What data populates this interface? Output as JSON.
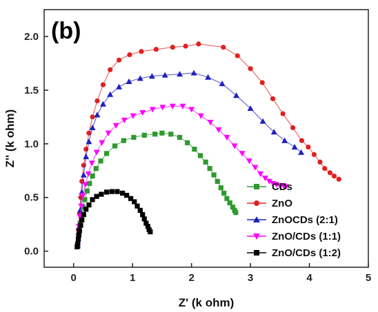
{
  "chart_data": {
    "type": "scatter",
    "panel_label": "(b)",
    "xlabel": "Z' (k ohm)",
    "ylabel": "Z'' (k ohm)",
    "xlim": [
      -0.5,
      5
    ],
    "ylim": [
      -0.15,
      2.25
    ],
    "xticks": [
      0,
      1,
      2,
      3,
      4,
      5
    ],
    "yticks": [
      0.0,
      0.5,
      1.0,
      1.5,
      2.0
    ],
    "ytick_labels": [
      "0.0",
      "0.5",
      "1.0",
      "1.5",
      "2.0"
    ],
    "grid": false,
    "legend_position": "bottom-right",
    "series": [
      {
        "name": "CDs",
        "color": "#2e9a2e",
        "marker": "square",
        "x": [
          0.07,
          0.08,
          0.09,
          0.11,
          0.13,
          0.16,
          0.19,
          0.23,
          0.27,
          0.32,
          0.38,
          0.46,
          0.56,
          0.7,
          0.85,
          1.02,
          1.2,
          1.38,
          1.5,
          1.65,
          1.8,
          1.93,
          2.05,
          2.15,
          2.24,
          2.31,
          2.38,
          2.44,
          2.5,
          2.55,
          2.6,
          2.65,
          2.7,
          2.73,
          2.75
        ],
        "y": [
          0.05,
          0.12,
          0.19,
          0.26,
          0.33,
          0.41,
          0.48,
          0.56,
          0.63,
          0.7,
          0.77,
          0.84,
          0.91,
          0.98,
          1.03,
          1.06,
          1.08,
          1.09,
          1.1,
          1.09,
          1.06,
          1.01,
          0.95,
          0.89,
          0.83,
          0.77,
          0.71,
          0.65,
          0.59,
          0.54,
          0.49,
          0.45,
          0.41,
          0.38,
          0.36
        ]
      },
      {
        "name": "ZnO",
        "color": "#e02020",
        "marker": "circle",
        "x": [
          0.06,
          0.08,
          0.1,
          0.12,
          0.14,
          0.17,
          0.21,
          0.26,
          0.32,
          0.4,
          0.5,
          0.62,
          0.77,
          0.95,
          1.15,
          1.4,
          1.68,
          1.9,
          2.12,
          2.54,
          2.78,
          3.0,
          3.2,
          3.38,
          3.55,
          3.72,
          3.87,
          3.98,
          4.08,
          4.18,
          4.26,
          4.35,
          4.42,
          4.5
        ],
        "y": [
          0.05,
          0.2,
          0.35,
          0.5,
          0.65,
          0.8,
          0.95,
          1.1,
          1.25,
          1.4,
          1.55,
          1.69,
          1.78,
          1.83,
          1.86,
          1.88,
          1.9,
          1.91,
          1.93,
          1.9,
          1.82,
          1.7,
          1.57,
          1.42,
          1.28,
          1.15,
          1.03,
          0.97,
          0.9,
          0.83,
          0.77,
          0.73,
          0.7,
          0.67
        ]
      },
      {
        "name": "ZnOCDs (2:1)",
        "color": "#2020c0",
        "marker": "triangle-up",
        "x": [
          0.07,
          0.09,
          0.11,
          0.14,
          0.17,
          0.21,
          0.26,
          0.32,
          0.4,
          0.5,
          0.62,
          0.77,
          0.94,
          1.13,
          1.33,
          1.55,
          1.8,
          2.04,
          2.28,
          2.52,
          2.76,
          3.0,
          3.21,
          3.4,
          3.58,
          3.75,
          3.86
        ],
        "y": [
          0.05,
          0.22,
          0.38,
          0.55,
          0.71,
          0.88,
          1.02,
          1.15,
          1.27,
          1.37,
          1.46,
          1.53,
          1.58,
          1.61,
          1.63,
          1.64,
          1.65,
          1.66,
          1.62,
          1.56,
          1.45,
          1.33,
          1.21,
          1.11,
          1.03,
          0.97,
          0.92
        ]
      },
      {
        "name": "ZnO/CDs (1:1)",
        "color": "#ff00ff",
        "marker": "triangle-down",
        "x": [
          0.07,
          0.08,
          0.09,
          0.11,
          0.13,
          0.16,
          0.2,
          0.25,
          0.31,
          0.39,
          0.48,
          0.59,
          0.72,
          0.86,
          1.01,
          1.17,
          1.34,
          1.51,
          1.68,
          1.85,
          2.0,
          2.16,
          2.32,
          2.46,
          2.6,
          2.73,
          2.86,
          2.98,
          3.08,
          3.17,
          3.25,
          3.32,
          3.38,
          3.44,
          3.5,
          3.56,
          3.6
        ],
        "y": [
          0.05,
          0.14,
          0.23,
          0.32,
          0.42,
          0.52,
          0.62,
          0.72,
          0.82,
          0.92,
          1.01,
          1.1,
          1.17,
          1.22,
          1.26,
          1.29,
          1.32,
          1.34,
          1.35,
          1.35,
          1.32,
          1.26,
          1.2,
          1.13,
          1.06,
          0.98,
          0.91,
          0.84,
          0.78,
          0.72,
          0.68,
          0.65,
          0.63,
          0.62,
          0.61,
          0.61,
          0.6
        ]
      },
      {
        "name": "ZnO/CDs (1:2)",
        "color": "#000000",
        "marker": "square",
        "x": [
          0.06,
          0.07,
          0.08,
          0.09,
          0.1,
          0.12,
          0.14,
          0.17,
          0.21,
          0.26,
          0.32,
          0.39,
          0.47,
          0.56,
          0.65,
          0.74,
          0.83,
          0.9,
          0.97,
          1.03,
          1.08,
          1.13,
          1.17,
          1.2,
          1.23,
          1.26,
          1.28,
          1.3
        ],
        "y": [
          0.04,
          0.07,
          0.11,
          0.15,
          0.19,
          0.24,
          0.29,
          0.34,
          0.39,
          0.43,
          0.48,
          0.51,
          0.53,
          0.55,
          0.555,
          0.555,
          0.54,
          0.52,
          0.49,
          0.46,
          0.42,
          0.38,
          0.34,
          0.3,
          0.26,
          0.23,
          0.2,
          0.18
        ]
      }
    ]
  }
}
